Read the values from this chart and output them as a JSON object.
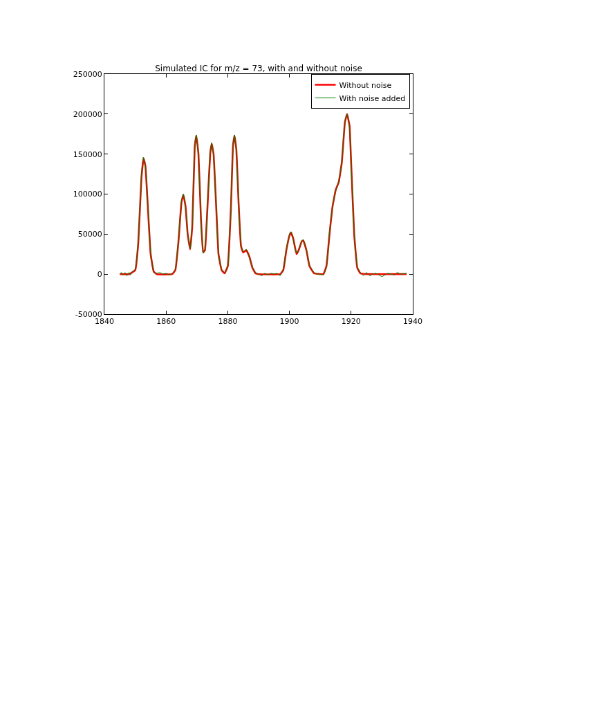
{
  "chart_data": {
    "type": "line",
    "title": "Simulated IC for m/z = 73, with and without noise",
    "xlim": [
      1840,
      1940
    ],
    "xticks": [
      1840,
      1860,
      1880,
      1900,
      1920,
      1940
    ],
    "ylim": [
      -50000,
      250000
    ],
    "yticks": [
      -50000,
      0,
      50000,
      100000,
      150000,
      200000,
      250000
    ],
    "legend": "top right",
    "marker": "none",
    "line_style": "solid",
    "series": [
      {
        "name": "Without noise",
        "color": "#ff0000",
        "x": [
          1845,
          1848,
          1850,
          1851,
          1852,
          1852.7,
          1853.3,
          1854,
          1855,
          1856,
          1857,
          1862,
          1863,
          1864,
          1865,
          1865.6,
          1866.3,
          1867,
          1867.8,
          1868.5,
          1869.3,
          1869.8,
          1870.5,
          1871.3,
          1872,
          1872.6,
          1873.5,
          1874.3,
          1874.8,
          1875.4,
          1876.3,
          1877,
          1878,
          1879,
          1880,
          1881,
          1881.7,
          1882.2,
          1882.8,
          1883.5,
          1884.3,
          1885,
          1886,
          1887,
          1888,
          1889,
          1890,
          1897,
          1898,
          1899,
          1900,
          1900.5,
          1901.2,
          1902.3,
          1903,
          1904,
          1904.5,
          1905.5,
          1906.5,
          1908,
          1911,
          1912,
          1913,
          1914,
          1915,
          1916,
          1917,
          1918,
          1918.7,
          1919.5,
          1920,
          1921,
          1922,
          1923,
          1925,
          1938
        ],
        "values": [
          0,
          0,
          5000,
          40000,
          120000,
          145000,
          135000,
          90000,
          25000,
          3000,
          0,
          0,
          5000,
          40000,
          90000,
          99000,
          85000,
          50000,
          31000,
          60000,
          160000,
          173000,
          150000,
          70000,
          27000,
          30000,
          90000,
          150000,
          163000,
          150000,
          80000,
          25000,
          5000,
          1000,
          10000,
          80000,
          160000,
          173000,
          155000,
          90000,
          35000,
          27000,
          30000,
          22000,
          8000,
          1000,
          0,
          0,
          5000,
          30000,
          48000,
          52000,
          45000,
          25000,
          30000,
          41000,
          42000,
          30000,
          10000,
          1000,
          0,
          10000,
          50000,
          85000,
          105000,
          115000,
          140000,
          190000,
          200000,
          185000,
          140000,
          50000,
          8000,
          1000,
          0,
          0
        ]
      },
      {
        "name": "With noise added",
        "color": "#008000",
        "x": [
          1845,
          1845.5,
          1846,
          1846.7,
          1847.3,
          1848,
          1848.5,
          1849,
          1850,
          1851,
          1852,
          1852.6,
          1853.3,
          1854,
          1855,
          1856,
          1857,
          1858,
          1859,
          1860,
          1861,
          1862,
          1863,
          1864,
          1865,
          1865.6,
          1866.3,
          1867,
          1867.8,
          1868.5,
          1869.3,
          1869.8,
          1870.5,
          1871.3,
          1872,
          1872.6,
          1873.5,
          1874.3,
          1874.8,
          1875.4,
          1876.3,
          1877,
          1878,
          1879,
          1880,
          1881,
          1881.7,
          1882.2,
          1882.8,
          1883.5,
          1884.3,
          1885,
          1886,
          1887,
          1888,
          1889,
          1890,
          1891,
          1892,
          1893,
          1894,
          1895,
          1896,
          1897,
          1898,
          1899,
          1900,
          1900.5,
          1901.2,
          1902.3,
          1903,
          1904,
          1904.5,
          1905.5,
          1906.5,
          1908,
          1909,
          1910,
          1911,
          1912,
          1913,
          1914,
          1915,
          1916,
          1917,
          1918,
          1918.7,
          1919.5,
          1920,
          1921,
          1922,
          1923,
          1924,
          1925,
          1926,
          1927,
          1928,
          1930,
          1932,
          1934,
          1935,
          1936,
          1938
        ],
        "values": [
          0,
          2000,
          -1000,
          2000,
          -2000,
          2000,
          -1000,
          3000,
          6000,
          42000,
          122000,
          146000,
          136000,
          92000,
          26000,
          2000,
          1000,
          2000,
          0,
          1000,
          -1000,
          1000,
          6000,
          42000,
          92000,
          100000,
          84000,
          51000,
          32000,
          62000,
          162000,
          174000,
          148000,
          71000,
          26000,
          31000,
          92000,
          152000,
          164000,
          148000,
          82000,
          26000,
          6000,
          2000,
          9000,
          82000,
          162000,
          174000,
          154000,
          92000,
          36000,
          28000,
          31000,
          21000,
          9000,
          2000,
          0,
          -2000,
          1000,
          -1000,
          1000,
          0,
          1000,
          -2000,
          6000,
          31000,
          50000,
          53000,
          44000,
          26000,
          30000,
          42000,
          43000,
          31000,
          11000,
          2000,
          0,
          0,
          -1000,
          9000,
          52000,
          86000,
          104000,
          116000,
          142000,
          192000,
          200000,
          183000,
          138000,
          52000,
          9000,
          2000,
          -2000,
          2000,
          -2000,
          0,
          1000,
          -3000,
          1000,
          -1000,
          2000,
          0,
          1000
        ]
      }
    ]
  }
}
